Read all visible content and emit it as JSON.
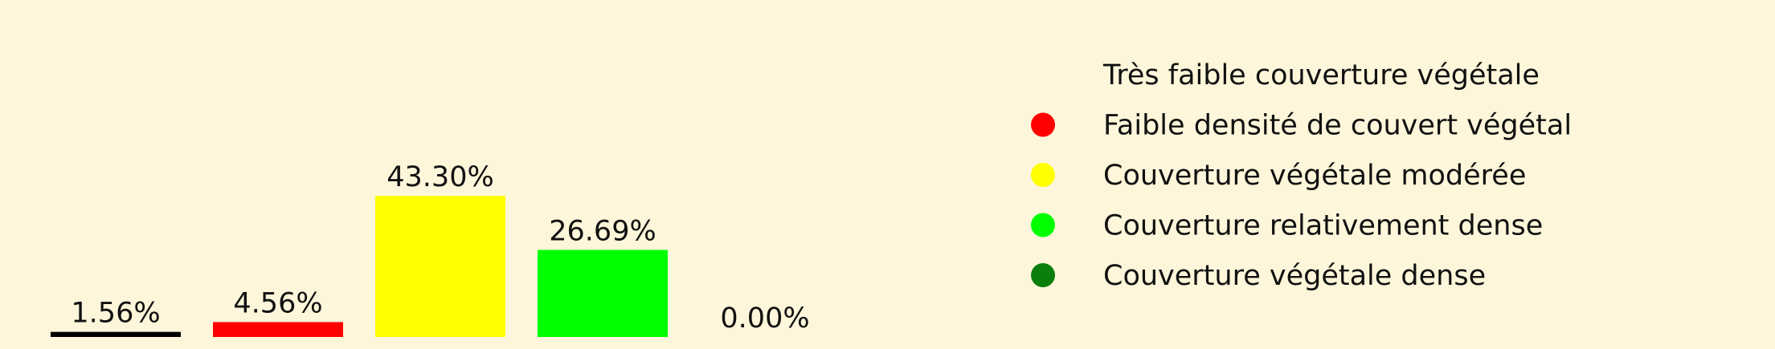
{
  "chart_data": {
    "type": "bar",
    "categories": [
      "Très faible couverture végétale",
      "Faible densité de couvert végétal",
      "Couverture végétale modérée",
      "Couverture relativement dense",
      "Couverture végétale dense"
    ],
    "values": [
      1.56,
      4.56,
      43.3,
      26.69,
      0.0
    ],
    "data_labels": [
      "1.56%",
      "4.56%",
      "43.30%",
      "26.69%",
      "0.00%"
    ],
    "colors": [
      "#000000",
      "#ff0000",
      "#ffff00",
      "#00ff00",
      "#0b7f0b"
    ],
    "ylim": [
      0,
      45
    ],
    "legend": {
      "position": "right",
      "entries": [
        "Très faible couverture végétale",
        "Faible densité de couvert végétal",
        "Couverture végétale modérée",
        "Couverture relativement dense",
        "Couverture végétale dense"
      ]
    },
    "grid": false
  }
}
